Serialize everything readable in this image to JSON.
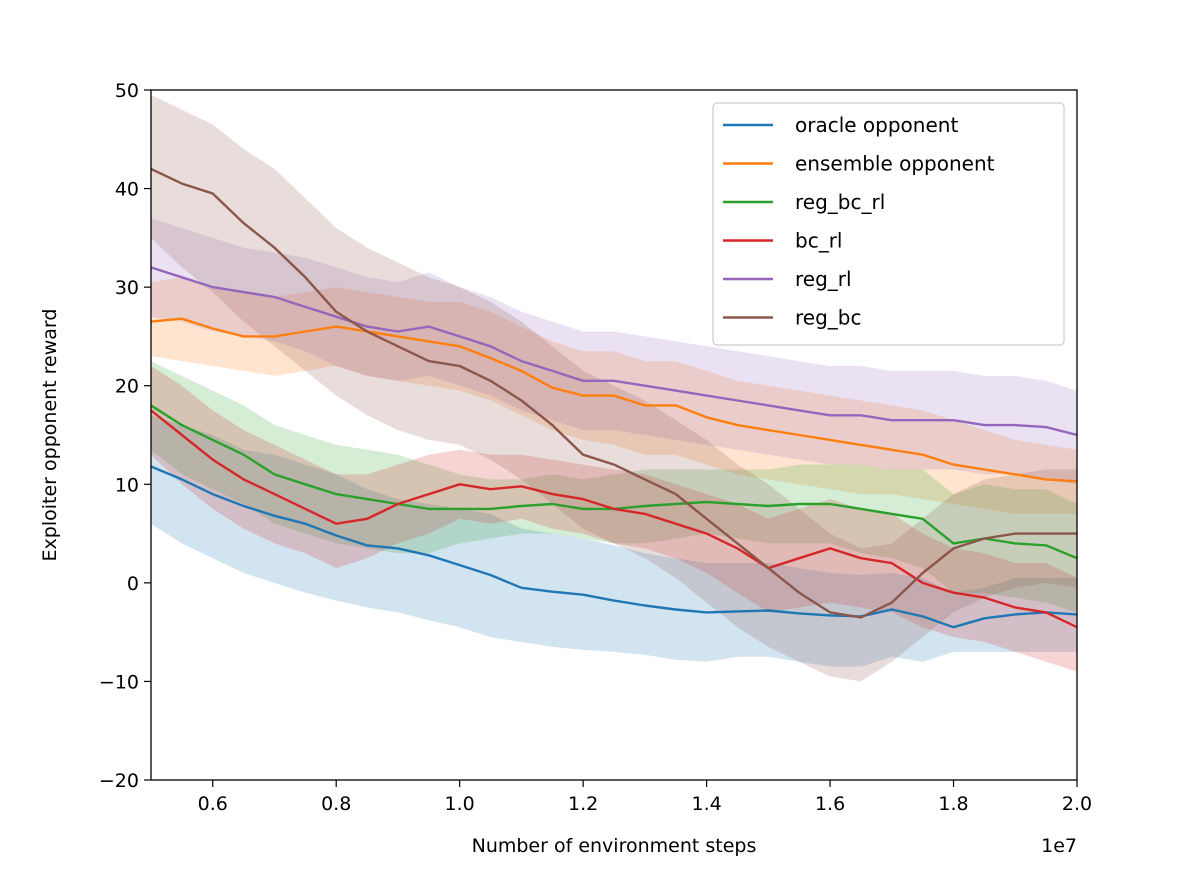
{
  "chart_data": {
    "type": "line",
    "title": "",
    "xlabel": "Number of environment steps",
    "ylabel": "Exploiter opponent reward",
    "x_offset_label": "1e7",
    "xlim": [
      0.5,
      2.0
    ],
    "ylim": [
      -20,
      50
    ],
    "xticks": [
      0.6,
      0.8,
      1.0,
      1.2,
      1.4,
      1.6,
      1.8,
      2.0
    ],
    "xtick_labels": [
      "0.6",
      "0.8",
      "1.0",
      "1.2",
      "1.4",
      "1.6",
      "1.8",
      "2.0"
    ],
    "yticks": [
      -20,
      -10,
      0,
      10,
      20,
      30,
      40,
      50
    ],
    "ytick_labels": [
      "−20",
      "−10",
      "0",
      "10",
      "20",
      "30",
      "40",
      "50"
    ],
    "legend_position": "top-right",
    "grid": false,
    "shaded_band": "uncertainty band around each mean line",
    "series": [
      {
        "name": "oracle opponent",
        "color": "#1f77b4",
        "x": [
          0.5,
          0.55,
          0.6,
          0.65,
          0.7,
          0.75,
          0.8,
          0.85,
          0.9,
          0.95,
          1.0,
          1.05,
          1.1,
          1.15,
          1.2,
          1.25,
          1.3,
          1.35,
          1.4,
          1.45,
          1.5,
          1.55,
          1.6,
          1.65,
          1.7,
          1.75,
          1.8,
          1.85,
          1.9,
          1.95,
          2.0
        ],
        "y": [
          11.8,
          10.5,
          9.0,
          7.8,
          6.8,
          6.0,
          4.8,
          3.8,
          3.5,
          2.8,
          1.8,
          0.8,
          -0.5,
          -0.9,
          -1.2,
          -1.8,
          -2.3,
          -2.7,
          -3.0,
          -2.9,
          -2.8,
          -3.1,
          -3.3,
          -3.4,
          -2.7,
          -3.4,
          -4.5,
          -3.6,
          -3.2,
          -3.0,
          -3.2
        ],
        "lower": [
          6.0,
          4.0,
          2.5,
          1.0,
          0.0,
          -1.0,
          -1.8,
          -2.5,
          -3.0,
          -3.8,
          -4.5,
          -5.5,
          -6.0,
          -6.5,
          -6.8,
          -7.0,
          -7.3,
          -7.8,
          -8.0,
          -7.5,
          -7.5,
          -8.0,
          -8.5,
          -8.5,
          -7.5,
          -8.0,
          -7.0,
          -7.0,
          -7.0,
          -7.0,
          -7.0
        ],
        "upper": [
          17.0,
          16.0,
          15.0,
          13.5,
          13.0,
          12.0,
          11.0,
          9.5,
          8.5,
          8.0,
          7.5,
          7.0,
          5.5,
          5.0,
          4.5,
          3.8,
          3.0,
          2.5,
          2.0,
          2.0,
          2.0,
          1.5,
          1.0,
          0.8,
          1.0,
          0.5,
          -1.0,
          -0.5,
          0.5,
          0.5,
          0.5
        ]
      },
      {
        "name": "ensemble opponent",
        "color": "#ff7f0e",
        "x": [
          0.5,
          0.55,
          0.6,
          0.65,
          0.7,
          0.75,
          0.8,
          0.85,
          0.9,
          0.95,
          1.0,
          1.05,
          1.1,
          1.15,
          1.2,
          1.25,
          1.3,
          1.35,
          1.4,
          1.45,
          1.5,
          1.55,
          1.6,
          1.65,
          1.7,
          1.75,
          1.8,
          1.85,
          1.9,
          1.95,
          2.0
        ],
        "y": [
          26.5,
          26.8,
          25.8,
          25.0,
          25.0,
          25.5,
          26.0,
          25.5,
          25.0,
          24.5,
          24.0,
          22.8,
          21.5,
          19.8,
          19.0,
          19.0,
          18.0,
          18.0,
          16.8,
          16.0,
          15.5,
          15.0,
          14.5,
          14.0,
          13.5,
          13.0,
          12.0,
          11.5,
          11.0,
          10.5,
          10.3
        ],
        "lower": [
          23.0,
          22.5,
          22.0,
          21.5,
          21.0,
          21.5,
          22.0,
          21.0,
          20.5,
          20.0,
          19.5,
          18.5,
          17.0,
          15.5,
          14.5,
          14.0,
          13.0,
          13.0,
          12.0,
          11.0,
          10.5,
          10.0,
          9.5,
          9.0,
          9.0,
          8.5,
          8.0,
          7.5,
          7.0,
          7.0,
          7.0
        ],
        "upper": [
          30.5,
          31.0,
          30.0,
          29.5,
          29.0,
          29.5,
          30.0,
          29.5,
          29.0,
          28.5,
          28.5,
          27.5,
          26.0,
          24.5,
          23.5,
          23.5,
          22.5,
          22.5,
          21.5,
          20.5,
          20.0,
          19.5,
          19.0,
          18.5,
          18.0,
          17.5,
          16.5,
          15.5,
          14.5,
          14.0,
          13.5
        ]
      },
      {
        "name": "reg_bc_rl",
        "color": "#2ca02c",
        "x": [
          0.5,
          0.55,
          0.6,
          0.65,
          0.7,
          0.75,
          0.8,
          0.85,
          0.9,
          0.95,
          1.0,
          1.05,
          1.1,
          1.15,
          1.2,
          1.25,
          1.3,
          1.35,
          1.4,
          1.45,
          1.5,
          1.55,
          1.6,
          1.65,
          1.7,
          1.75,
          1.8,
          1.85,
          1.9,
          1.95,
          2.0
        ],
        "y": [
          18.0,
          16.0,
          14.5,
          13.0,
          11.0,
          10.0,
          9.0,
          8.5,
          8.0,
          7.5,
          7.5,
          7.5,
          7.8,
          8.0,
          7.5,
          7.5,
          7.8,
          8.0,
          8.2,
          8.0,
          7.8,
          8.0,
          8.0,
          7.5,
          7.0,
          6.5,
          4.0,
          4.5,
          4.0,
          3.8,
          2.5
        ],
        "lower": [
          13.5,
          11.0,
          9.5,
          8.0,
          6.0,
          5.0,
          4.0,
          3.5,
          3.0,
          3.0,
          4.0,
          4.5,
          5.0,
          5.0,
          4.5,
          4.0,
          4.0,
          4.5,
          5.0,
          4.5,
          4.0,
          4.0,
          4.0,
          3.0,
          2.5,
          1.5,
          -1.0,
          -1.0,
          -1.5,
          -2.0,
          -3.0
        ],
        "upper": [
          22.5,
          21.0,
          19.5,
          18.0,
          16.0,
          15.0,
          14.0,
          13.5,
          13.0,
          12.0,
          11.0,
          10.5,
          10.5,
          11.0,
          10.5,
          11.0,
          11.5,
          11.5,
          11.5,
          11.5,
          11.5,
          12.0,
          12.0,
          12.0,
          11.5,
          11.5,
          9.0,
          10.0,
          9.5,
          9.5,
          8.0
        ]
      },
      {
        "name": "bc_rl",
        "color": "#d62728",
        "x": [
          0.5,
          0.55,
          0.6,
          0.65,
          0.7,
          0.75,
          0.8,
          0.85,
          0.9,
          0.95,
          1.0,
          1.05,
          1.1,
          1.15,
          1.2,
          1.25,
          1.3,
          1.35,
          1.4,
          1.45,
          1.5,
          1.55,
          1.6,
          1.65,
          1.7,
          1.75,
          1.8,
          1.85,
          1.9,
          1.95,
          2.0
        ],
        "y": [
          17.5,
          15.0,
          12.5,
          10.5,
          9.0,
          7.5,
          6.0,
          6.5,
          8.0,
          9.0,
          10.0,
          9.5,
          9.8,
          9.0,
          8.5,
          7.5,
          7.0,
          6.0,
          5.0,
          3.5,
          1.5,
          2.5,
          3.5,
          2.5,
          2.0,
          0.0,
          -1.0,
          -1.5,
          -2.5,
          -3.0,
          -4.5
        ],
        "lower": [
          13.0,
          10.0,
          7.5,
          5.5,
          4.0,
          3.0,
          1.5,
          2.5,
          4.0,
          5.0,
          6.5,
          6.0,
          6.5,
          5.5,
          5.0,
          4.0,
          3.5,
          2.5,
          1.0,
          -1.0,
          -3.0,
          -2.5,
          -2.0,
          -2.5,
          -3.0,
          -4.5,
          -5.5,
          -6.0,
          -7.0,
          -8.0,
          -9.0
        ],
        "upper": [
          22.0,
          20.0,
          17.5,
          15.5,
          14.0,
          12.5,
          11.0,
          11.0,
          12.0,
          13.0,
          13.5,
          13.0,
          13.0,
          12.5,
          12.0,
          11.5,
          11.0,
          10.0,
          9.0,
          8.0,
          6.5,
          7.5,
          8.5,
          7.5,
          7.0,
          5.0,
          3.5,
          3.0,
          2.0,
          2.0,
          0.5
        ]
      },
      {
        "name": "reg_rl",
        "color": "#9467bd",
        "x": [
          0.5,
          0.55,
          0.6,
          0.65,
          0.7,
          0.75,
          0.8,
          0.85,
          0.9,
          0.95,
          1.0,
          1.05,
          1.1,
          1.15,
          1.2,
          1.25,
          1.3,
          1.35,
          1.4,
          1.45,
          1.5,
          1.55,
          1.6,
          1.65,
          1.7,
          1.75,
          1.8,
          1.85,
          1.9,
          1.95,
          2.0
        ],
        "y": [
          32.0,
          31.0,
          30.0,
          29.5,
          29.0,
          28.0,
          27.0,
          26.0,
          25.5,
          26.0,
          25.0,
          24.0,
          22.5,
          21.5,
          20.5,
          20.5,
          20.0,
          19.5,
          19.0,
          18.5,
          18.0,
          17.5,
          17.0,
          17.0,
          16.5,
          16.5,
          16.5,
          16.0,
          16.0,
          15.8,
          15.0
        ],
        "lower": [
          27.0,
          26.5,
          25.5,
          25.0,
          24.5,
          23.5,
          22.0,
          21.0,
          20.5,
          21.0,
          20.0,
          19.0,
          17.5,
          16.5,
          15.5,
          15.5,
          15.0,
          14.5,
          14.0,
          13.5,
          13.0,
          12.5,
          12.0,
          12.0,
          11.5,
          11.5,
          11.5,
          11.0,
          11.0,
          10.5,
          10.0
        ],
        "upper": [
          37.0,
          36.0,
          35.0,
          34.0,
          33.5,
          33.0,
          32.0,
          31.0,
          30.5,
          31.5,
          30.0,
          29.0,
          27.5,
          26.5,
          25.5,
          25.5,
          25.0,
          24.5,
          24.0,
          23.5,
          23.0,
          22.5,
          22.0,
          22.0,
          21.5,
          21.5,
          21.5,
          21.0,
          21.0,
          20.5,
          19.5
        ]
      },
      {
        "name": "reg_bc",
        "color": "#8c564b",
        "x": [
          0.5,
          0.55,
          0.6,
          0.65,
          0.7,
          0.75,
          0.8,
          0.85,
          0.9,
          0.95,
          1.0,
          1.05,
          1.1,
          1.15,
          1.2,
          1.25,
          1.3,
          1.35,
          1.4,
          1.45,
          1.5,
          1.55,
          1.6,
          1.65,
          1.7,
          1.75,
          1.8,
          1.85,
          1.9,
          1.95,
          2.0
        ],
        "y": [
          42.0,
          40.5,
          39.5,
          36.5,
          34.0,
          31.0,
          27.5,
          25.5,
          24.0,
          22.5,
          22.0,
          20.5,
          18.5,
          16.0,
          13.0,
          12.0,
          10.5,
          9.0,
          6.5,
          4.0,
          1.5,
          -1.0,
          -3.0,
          -3.5,
          -2.0,
          1.0,
          3.5,
          4.5,
          5.0,
          5.0,
          5.0
        ],
        "lower": [
          35.0,
          32.0,
          29.5,
          26.5,
          24.0,
          21.5,
          19.0,
          17.0,
          15.5,
          14.5,
          14.0,
          12.5,
          10.5,
          8.0,
          5.5,
          4.0,
          2.5,
          0.5,
          -2.0,
          -4.5,
          -6.5,
          -8.0,
          -9.5,
          -10.0,
          -8.0,
          -5.5,
          -3.0,
          -1.5,
          -0.5,
          0.0,
          -0.5
        ],
        "upper": [
          49.5,
          48.0,
          46.5,
          44.0,
          42.0,
          39.0,
          36.0,
          34.0,
          32.5,
          31.0,
          30.0,
          28.5,
          26.5,
          24.0,
          21.5,
          20.0,
          18.5,
          16.5,
          14.5,
          12.0,
          10.0,
          7.5,
          5.0,
          3.5,
          4.0,
          6.5,
          9.0,
          10.5,
          11.0,
          11.5,
          11.5
        ]
      }
    ]
  }
}
